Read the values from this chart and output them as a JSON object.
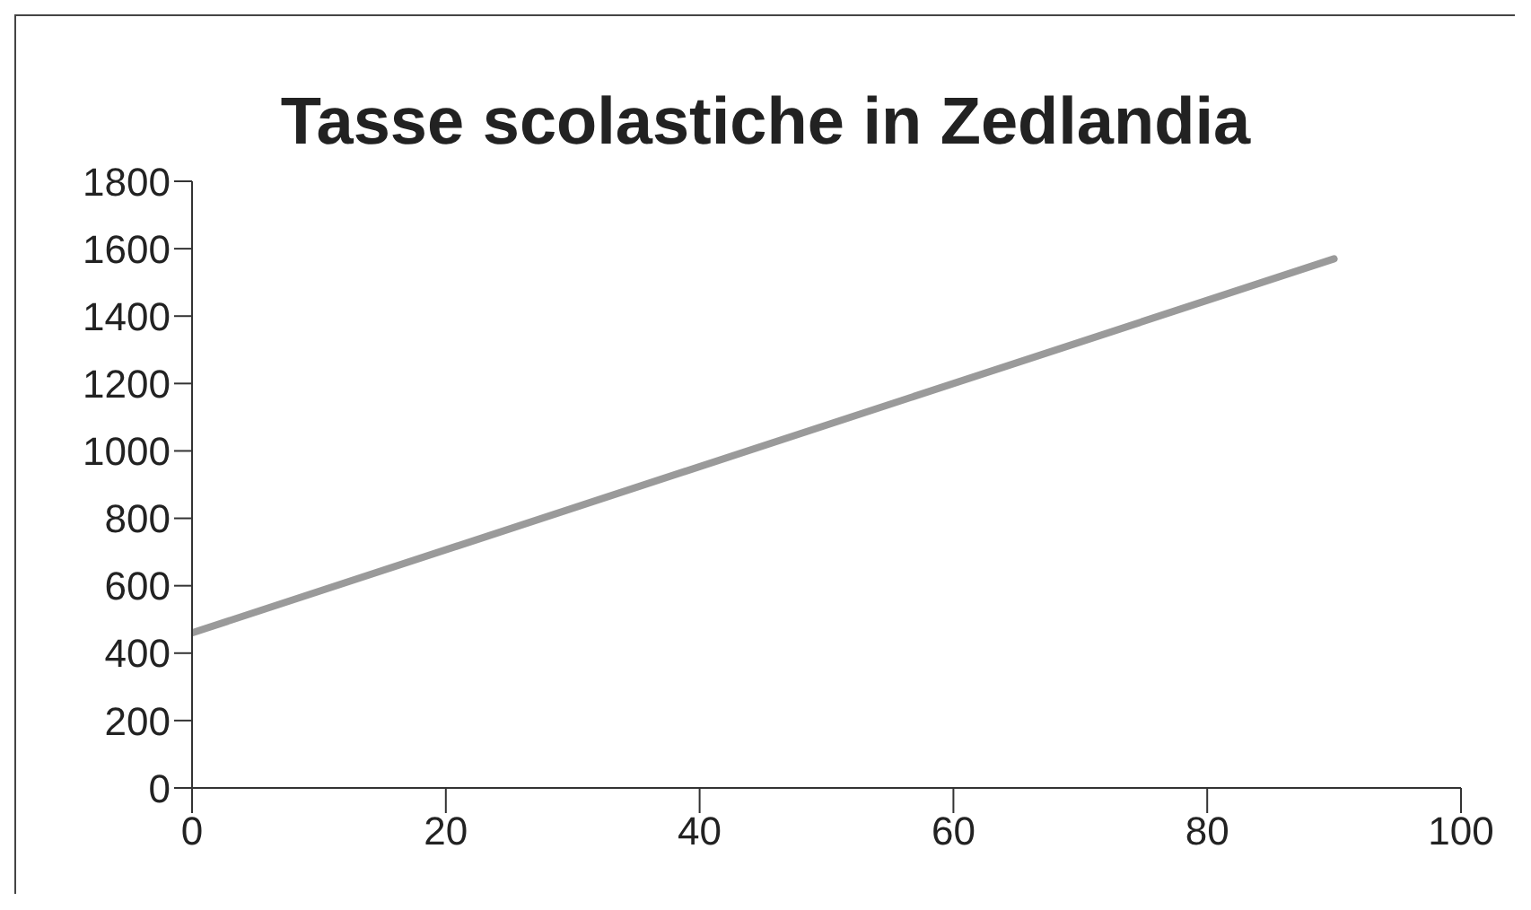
{
  "chart_data": {
    "type": "line",
    "title": "Tasse scolastiche in Zedlandia",
    "x": [
      0,
      90
    ],
    "series": [
      {
        "color": "#9a9a9a",
        "values": [
          460,
          1570
        ]
      }
    ],
    "xlim": [
      0,
      100
    ],
    "xticks": [
      0,
      20,
      40,
      60,
      80,
      100
    ],
    "ylim": [
      0,
      1800
    ],
    "yticks": [
      0,
      200,
      400,
      600,
      800,
      1000,
      1200,
      1400,
      1600,
      1800
    ],
    "grid": false,
    "legend": false,
    "marker": "none",
    "line_style": "solid"
  }
}
